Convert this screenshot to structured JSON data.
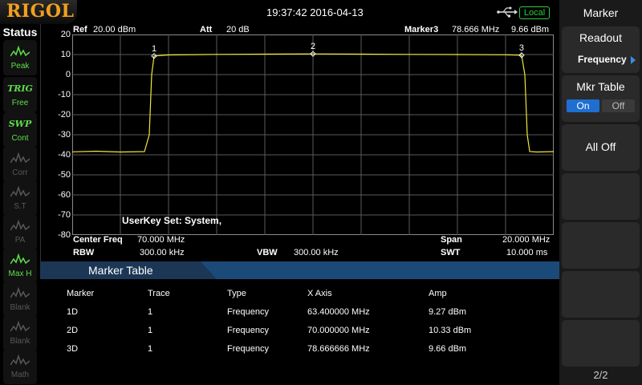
{
  "header": {
    "brand": "RIGOL",
    "datetime": "19:37:42 2016-04-13",
    "remote_mode": "Local"
  },
  "status_panel": {
    "title": "Status",
    "buttons": [
      {
        "top": "",
        "label": "Peak",
        "state": "on",
        "icon": "peak-icon"
      },
      {
        "top": "TRIG",
        "label": "Free",
        "state": "on",
        "icon": "trig-icon"
      },
      {
        "top": "SWP",
        "label": "Cont",
        "state": "on",
        "icon": "sweep-icon"
      },
      {
        "top": "",
        "label": "Corr",
        "state": "off",
        "icon": "corr-icon"
      },
      {
        "top": "",
        "label": "S.T",
        "state": "off",
        "icon": "source-tracking-icon"
      },
      {
        "top": "",
        "label": "PA",
        "state": "off",
        "icon": "preamp-icon"
      },
      {
        "top": "",
        "label": "Max H",
        "state": "on",
        "icon": "max-hold-icon"
      },
      {
        "top": "",
        "label": "Blank",
        "state": "off",
        "icon": "trace-blank-icon"
      },
      {
        "top": "",
        "label": "Blank",
        "state": "off",
        "icon": "trace-blank-icon"
      },
      {
        "top": "",
        "label": "Math",
        "state": "off",
        "icon": "trace-math-icon"
      }
    ]
  },
  "plot": {
    "ref_label": "Ref",
    "ref_value": "20.00 dBm",
    "att_label": "Att",
    "att_value": "20 dB",
    "marker_label": "Marker3",
    "marker_freq": "78.666 MHz",
    "marker_amp": "9.66 dBm",
    "y_ticks": [
      "20",
      "10",
      "0",
      "-10",
      "-20",
      "-30",
      "-40",
      "-50",
      "-60",
      "-70",
      "-80"
    ],
    "userkey_text": "UserKey Set:   System,",
    "marker_tags": [
      "1",
      "2",
      "3"
    ],
    "trace_color": "#f2e83a"
  },
  "chart_data": {
    "type": "line",
    "xlabel": "",
    "ylabel": "",
    "xlim": [
      60.0,
      80.0
    ],
    "ylim": [
      -80,
      20
    ],
    "grid": true,
    "series": [
      {
        "x": [
          60.0,
          61.0,
          62.0,
          63.0,
          63.2,
          63.3,
          63.4,
          64.0,
          66.0,
          68.0,
          70.0,
          72.0,
          74.0,
          76.0,
          78.0,
          78.666,
          78.8,
          78.9,
          79.0,
          79.3,
          80.0
        ],
        "values": [
          -38.5,
          -38.2,
          -38.6,
          -38.4,
          -30.0,
          0.0,
          9.27,
          9.8,
          10.1,
          10.2,
          10.33,
          10.2,
          10.1,
          10.0,
          9.9,
          9.66,
          0.0,
          -30.0,
          -38.3,
          -38.6,
          -38.4
        ]
      }
    ],
    "markers": [
      {
        "label": "1",
        "x": 63.4,
        "y": 9.27
      },
      {
        "label": "2",
        "x": 70.0,
        "y": 10.33
      },
      {
        "label": "3",
        "x": 78.666,
        "y": 9.66
      }
    ]
  },
  "sweep": {
    "center_label": "Center Freq",
    "center_value": "70.000 MHz",
    "span_label": "Span",
    "span_value": "20.000 MHz",
    "rbw_label": "RBW",
    "rbw_value": "300.00 kHz",
    "vbw_label": "VBW",
    "vbw_value": "300.00 kHz",
    "swt_label": "SWT",
    "swt_value": "10.000 ms"
  },
  "marker_table": {
    "title": "Marker Table",
    "columns": [
      "Marker",
      "Trace",
      "Type",
      "X Axis",
      "Amp"
    ],
    "rows": [
      [
        "1D",
        "1",
        "Frequency",
        "63.400000 MHz",
        "9.27 dBm"
      ],
      [
        "2D",
        "1",
        "Frequency",
        "70.000000 MHz",
        "10.33 dBm"
      ],
      [
        "3D",
        "1",
        "Frequency",
        "78.666666 MHz",
        "9.66 dBm"
      ]
    ]
  },
  "softkeys": {
    "title": "Marker",
    "readout_label": "Readout",
    "readout_value": "Frequency",
    "mkr_table_label": "Mkr Table",
    "mkr_table_on": "On",
    "mkr_table_off": "Off",
    "all_off_label": "All Off",
    "page": "2/2",
    "accent_color": "#1e6fd0"
  }
}
